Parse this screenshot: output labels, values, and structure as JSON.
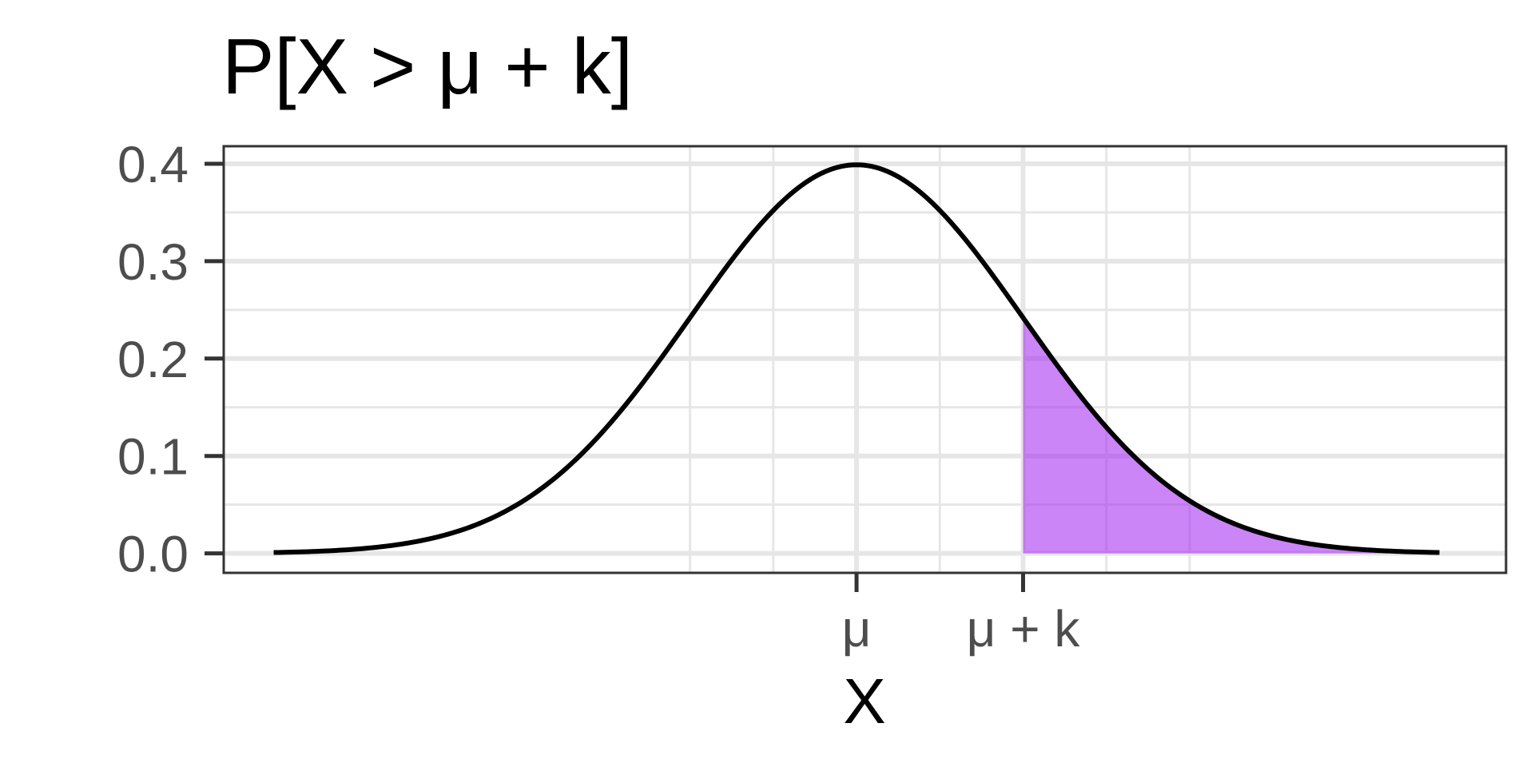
{
  "chart_data": {
    "type": "area",
    "title": "P[X > μ + k]",
    "xlabel": "X",
    "ylabel": "",
    "xlim": [
      -3.8,
      3.9
    ],
    "ylim": [
      -0.02,
      0.418
    ],
    "x_ticks": [
      {
        "value": 0,
        "label": "μ"
      },
      {
        "value": 1,
        "label": "μ + k"
      }
    ],
    "y_ticks": [
      {
        "value": 0.0,
        "label": "0.0"
      },
      {
        "value": 0.1,
        "label": "0.1"
      },
      {
        "value": 0.2,
        "label": "0.2"
      },
      {
        "value": 0.3,
        "label": "0.3"
      },
      {
        "value": 0.4,
        "label": "0.4"
      }
    ],
    "x_minor_grid": [
      -1,
      -0.5,
      0.5,
      1.5,
      2
    ],
    "y_minor_grid": [
      0.05,
      0.15,
      0.25,
      0.35
    ],
    "curve": {
      "name": "",
      "distribution": "standard normal density",
      "x_range": [
        -3.5,
        3.5
      ],
      "points": [
        [
          -3.5,
          0.0009
        ],
        [
          -3.0,
          0.0044
        ],
        [
          -2.5,
          0.0175
        ],
        [
          -2.0,
          0.054
        ],
        [
          -1.5,
          0.1295
        ],
        [
          -1.0,
          0.242
        ],
        [
          -0.5,
          0.3521
        ],
        [
          0.0,
          0.3989
        ],
        [
          0.5,
          0.3521
        ],
        [
          1.0,
          0.242
        ],
        [
          1.5,
          0.1295
        ],
        [
          2.0,
          0.054
        ],
        [
          2.5,
          0.0175
        ],
        [
          3.0,
          0.0044
        ],
        [
          3.5,
          0.0009
        ]
      ],
      "color": "#000000"
    },
    "shaded_region": {
      "from": 1,
      "to": 3.5,
      "color": "#a020f0",
      "opacity": 0.55
    },
    "grid": true,
    "legend": "none",
    "colors": {
      "panel_border": "#333333",
      "grid": "#e6e6e6",
      "tick_text": "#4d4d4d"
    }
  }
}
